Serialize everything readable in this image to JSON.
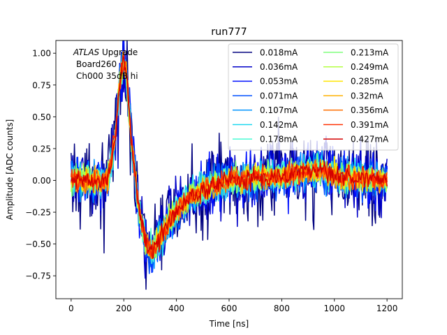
{
  "chart_data": {
    "type": "line",
    "title": "run777",
    "xlabel": "Time [ns]",
    "ylabel": "Amplitude [ADC counts]",
    "xlim": [
      -58,
      1258
    ],
    "ylim": [
      -0.93,
      1.1
    ],
    "xticks": [
      0,
      200,
      400,
      600,
      800,
      1000,
      1200
    ],
    "yticks": [
      -0.75,
      -0.5,
      -0.25,
      0.0,
      0.25,
      0.5,
      0.75,
      1.0
    ],
    "grid": false,
    "annotation": {
      "italic": "ATLAS",
      "rest": " Upgrade",
      "line2": "Board260",
      "line3": "Ch000 35dB hi"
    },
    "legend_position": "top-right",
    "legend_columns": 2,
    "x_sample_start": 0,
    "x_sample_end": 1200,
    "x_sample_step": 3.125,
    "series": [
      {
        "name": "0.018mA",
        "current_mA": 0.018,
        "color": "#00007f",
        "noise_std": 0.17
      },
      {
        "name": "0.036mA",
        "current_mA": 0.036,
        "color": "#0000c8",
        "noise_std": 0.125
      },
      {
        "name": "0.053mA",
        "current_mA": 0.053,
        "color": "#0010ff",
        "noise_std": 0.1
      },
      {
        "name": "0.071mA",
        "current_mA": 0.071,
        "color": "#0050ff",
        "noise_std": 0.085
      },
      {
        "name": "0.107mA",
        "current_mA": 0.107,
        "color": "#0094ff",
        "noise_std": 0.072
      },
      {
        "name": "0.142mA",
        "current_mA": 0.142,
        "color": "#1ad8f0",
        "noise_std": 0.064
      },
      {
        "name": "0.178mA",
        "current_mA": 0.178,
        "color": "#4afbd5",
        "noise_std": 0.058
      },
      {
        "name": "0.213mA",
        "current_mA": 0.213,
        "color": "#7dff7a",
        "noise_std": 0.053
      },
      {
        "name": "0.249mA",
        "current_mA": 0.249,
        "color": "#b4ff43",
        "noise_std": 0.049
      },
      {
        "name": "0.285mA",
        "current_mA": 0.285,
        "color": "#ffe500",
        "noise_std": 0.046
      },
      {
        "name": "0.32mA",
        "current_mA": 0.32,
        "color": "#ffb000",
        "noise_std": 0.044
      },
      {
        "name": "0.356mA",
        "current_mA": 0.356,
        "color": "#ff6e00",
        "noise_std": 0.042
      },
      {
        "name": "0.391mA",
        "current_mA": 0.391,
        "color": "#ff3000",
        "noise_std": 0.04
      },
      {
        "name": "0.427mA",
        "current_mA": 0.427,
        "color": "#d40000",
        "noise_std": 0.038
      }
    ],
    "mean_pulse": {
      "description": "shared underlying pulse shape (ns, amplitude), linearly interpolated",
      "points": [
        [
          0,
          0.0
        ],
        [
          140,
          0.0
        ],
        [
          165,
          0.3
        ],
        [
          185,
          0.78
        ],
        [
          200,
          0.95
        ],
        [
          212,
          0.8
        ],
        [
          230,
          0.3
        ],
        [
          255,
          -0.2
        ],
        [
          280,
          -0.45
        ],
        [
          305,
          -0.57
        ],
        [
          330,
          -0.48
        ],
        [
          360,
          -0.36
        ],
        [
          400,
          -0.24
        ],
        [
          450,
          -0.14
        ],
        [
          500,
          -0.07
        ],
        [
          550,
          -0.03
        ],
        [
          600,
          0.0
        ],
        [
          700,
          0.02
        ],
        [
          800,
          0.03
        ],
        [
          850,
          0.05
        ],
        [
          900,
          0.08
        ],
        [
          950,
          0.07
        ],
        [
          1000,
          0.04
        ],
        [
          1050,
          0.02
        ],
        [
          1100,
          0.02
        ],
        [
          1200,
          0.0
        ]
      ]
    }
  }
}
